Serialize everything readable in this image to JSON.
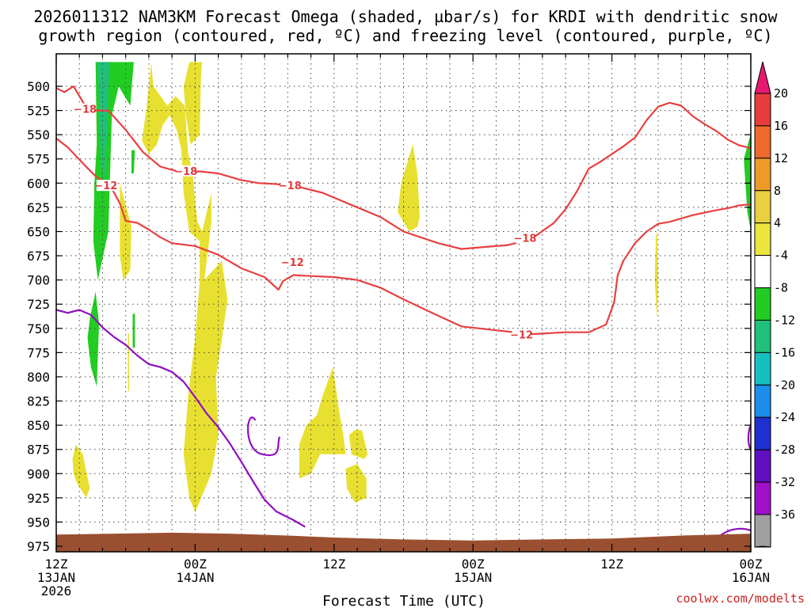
{
  "chart_data": {
    "type": "contour",
    "title_line1": "2026011312 NAM3KM Forecast Omega (shaded, µbar/s) for KRDI with dendritic snow",
    "title_line2": "growth region (contoured, red, ºC) and freezing level (contoured, purple, ºC)",
    "xlabel": "Forecast Time (UTC)",
    "credit": "coolwx.com/modelts",
    "x_ticks": [
      {
        "hour": 0,
        "lines": [
          "12Z",
          "13JAN",
          "2026"
        ]
      },
      {
        "hour": 12,
        "lines": [
          "00Z",
          "14JAN"
        ]
      },
      {
        "hour": 24,
        "lines": [
          "12Z"
        ]
      },
      {
        "hour": 36,
        "lines": [
          "00Z",
          "15JAN"
        ]
      },
      {
        "hour": 48,
        "lines": [
          "12Z"
        ]
      },
      {
        "hour": 60,
        "lines": [
          "00Z",
          "16JAN"
        ]
      }
    ],
    "xlim_hours": [
      0,
      60
    ],
    "y_ticks": [
      500,
      525,
      550,
      575,
      600,
      625,
      650,
      675,
      700,
      725,
      750,
      775,
      800,
      825,
      850,
      875,
      900,
      925,
      950,
      975
    ],
    "ylim_hPa": [
      475,
      985
    ],
    "grid": true,
    "colorbar": {
      "labels": [
        "20",
        "16",
        "12",
        "8",
        "4",
        "-4",
        "-8",
        "-12",
        "-16",
        "-20",
        "-24",
        "-28",
        "-32",
        "-36"
      ],
      "colors": [
        "#e8186f",
        "#e83c3c",
        "#ec6a2c",
        "#ee9a2a",
        "#e8d040",
        "#ebe53c",
        "#ffffff",
        "#22cc22",
        "#1fc07a",
        "#14c0c0",
        "#1a8ee8",
        "#2030d0",
        "#6010c0",
        "#a010c8",
        "#a0a0a0",
        "#000000"
      ]
    },
    "contours": [
      {
        "label": "-18",
        "color": "#e84040",
        "points": [
          [
            -0.3,
            500
          ],
          [
            0.7,
            506
          ],
          [
            1.5,
            500
          ],
          [
            2.5,
            520
          ],
          [
            3.5,
            525
          ],
          [
            4.5,
            525
          ],
          [
            6,
            545
          ],
          [
            7.5,
            568
          ],
          [
            9,
            583
          ],
          [
            10.5,
            588
          ],
          [
            12.5,
            588
          ],
          [
            14,
            590
          ],
          [
            16,
            597
          ],
          [
            17.5,
            600
          ],
          [
            19,
            601
          ],
          [
            21,
            604
          ],
          [
            23,
            610
          ],
          [
            25,
            620
          ],
          [
            28,
            635
          ],
          [
            30,
            650
          ],
          [
            33,
            662
          ],
          [
            35,
            668
          ],
          [
            37,
            666
          ],
          [
            39,
            664
          ],
          [
            41,
            658
          ],
          [
            43,
            641
          ],
          [
            44,
            627
          ],
          [
            45,
            608
          ],
          [
            46,
            585
          ],
          [
            47,
            578
          ],
          [
            48,
            570
          ],
          [
            49,
            562
          ],
          [
            50,
            553
          ],
          [
            51,
            535
          ],
          [
            52,
            521
          ],
          [
            53,
            517
          ],
          [
            54,
            520
          ],
          [
            55,
            531
          ],
          [
            56,
            539
          ],
          [
            57,
            546
          ],
          [
            58,
            555
          ],
          [
            59,
            561
          ],
          [
            60,
            564
          ]
        ]
      },
      {
        "label": "-12",
        "color": "#e84040",
        "points": [
          [
            -0.3,
            551
          ],
          [
            1,
            563
          ],
          [
            2.5,
            582
          ],
          [
            3.5,
            594
          ],
          [
            4.5,
            601
          ],
          [
            5,
            610
          ],
          [
            5.5,
            621
          ],
          [
            6,
            639
          ],
          [
            7,
            641
          ],
          [
            8,
            648
          ],
          [
            9,
            656
          ],
          [
            10,
            662
          ],
          [
            12,
            665
          ],
          [
            14,
            674
          ],
          [
            16,
            688
          ],
          [
            18,
            697
          ],
          [
            19.2,
            710
          ],
          [
            19.6,
            701
          ],
          [
            20.5,
            695
          ],
          [
            22,
            696
          ],
          [
            24,
            697
          ],
          [
            26,
            700
          ],
          [
            28,
            708
          ],
          [
            30,
            720
          ],
          [
            33,
            737
          ],
          [
            35,
            748
          ],
          [
            38,
            752
          ],
          [
            41,
            756
          ],
          [
            44,
            754
          ],
          [
            46,
            754
          ],
          [
            47.5,
            746
          ],
          [
            48.2,
            723
          ],
          [
            48.5,
            695
          ],
          [
            49,
            680
          ],
          [
            50,
            662
          ],
          [
            51,
            650
          ],
          [
            52,
            642
          ],
          [
            53,
            640
          ],
          [
            55,
            633
          ],
          [
            57,
            628
          ],
          [
            58,
            626
          ],
          [
            59,
            623
          ],
          [
            60,
            622
          ]
        ]
      },
      {
        "label": "",
        "color": "#9010c0",
        "points": [
          [
            -0.3,
            730
          ],
          [
            1,
            734
          ],
          [
            2,
            731
          ],
          [
            3,
            736
          ],
          [
            4,
            749
          ],
          [
            5,
            759
          ],
          [
            6,
            767
          ],
          [
            7,
            778
          ],
          [
            8,
            787
          ],
          [
            9,
            790
          ],
          [
            10,
            795
          ],
          [
            11,
            805
          ],
          [
            12,
            821
          ],
          [
            13,
            838
          ],
          [
            14,
            852
          ],
          [
            15,
            869
          ],
          [
            16,
            888
          ],
          [
            17,
            908
          ],
          [
            18,
            927
          ],
          [
            19,
            939
          ],
          [
            20.5,
            948
          ],
          [
            21.5,
            955
          ]
        ]
      }
    ],
    "omega_regions": [
      {
        "level": "-8",
        "color": "#22cc22",
        "points": [
          [
            3.4,
            475
          ],
          [
            6.7,
            475
          ],
          [
            6.4,
            520
          ],
          [
            5.4,
            500
          ],
          [
            4.8,
            530
          ],
          [
            4.5,
            650
          ],
          [
            3.6,
            700
          ],
          [
            3.2,
            660
          ],
          [
            3.3,
            600
          ],
          [
            3.5,
            560
          ]
        ]
      },
      {
        "level": "-8",
        "color": "#22cc22",
        "points": [
          [
            2.9,
            740
          ],
          [
            3.4,
            712
          ],
          [
            3.7,
            745
          ],
          [
            3.5,
            810
          ],
          [
            3.0,
            790
          ],
          [
            2.7,
            760
          ]
        ]
      },
      {
        "level": "-12",
        "color": "#1fc07a",
        "points": [
          [
            3.6,
            475
          ],
          [
            4.6,
            475
          ],
          [
            4.4,
            540
          ],
          [
            4.2,
            600
          ],
          [
            3.9,
            580
          ],
          [
            3.7,
            530
          ]
        ]
      },
      {
        "level": "-8",
        "color": "#22cc22",
        "points": [
          [
            6.5,
            566
          ],
          [
            6.8,
            566
          ],
          [
            6.7,
            590
          ],
          [
            6.5,
            590
          ]
        ]
      },
      {
        "level": "-8",
        "color": "#22cc22",
        "points": [
          [
            6.6,
            735
          ],
          [
            6.8,
            735
          ],
          [
            6.8,
            770
          ],
          [
            6.6,
            770
          ]
        ]
      },
      {
        "level": "-8",
        "color": "#22cc22",
        "points": [
          [
            59.4,
            575
          ],
          [
            60.2,
            540
          ],
          [
            60.6,
            560
          ],
          [
            60.5,
            680
          ],
          [
            59.7,
            630
          ]
        ]
      },
      {
        "level": "4",
        "color": "#e8e030",
        "points": [
          [
            5.5,
            600
          ],
          [
            6.5,
            645
          ],
          [
            6.4,
            690
          ],
          [
            5.8,
            700
          ],
          [
            5.5,
            675
          ]
        ]
      },
      {
        "level": "4",
        "color": "#e8e030",
        "points": [
          [
            7.4,
            556
          ],
          [
            7.8,
            523
          ],
          [
            8.2,
            476
          ],
          [
            8.4,
            500
          ],
          [
            9.6,
            520
          ],
          [
            10.3,
            510
          ],
          [
            11.1,
            520
          ],
          [
            11.4,
            570
          ],
          [
            11.8,
            590
          ],
          [
            12.0,
            620
          ],
          [
            12.2,
            640
          ],
          [
            12.6,
            650
          ],
          [
            13.4,
            610
          ],
          [
            13.4,
            640
          ],
          [
            12.8,
            700
          ],
          [
            14.3,
            680
          ],
          [
            14.8,
            720
          ],
          [
            14.2,
            770
          ],
          [
            13.8,
            800
          ],
          [
            14.0,
            860
          ],
          [
            13.4,
            900
          ],
          [
            12.0,
            940
          ],
          [
            11.5,
            925
          ],
          [
            11.0,
            880
          ],
          [
            11.4,
            820
          ],
          [
            12.0,
            760
          ],
          [
            12.4,
            700
          ],
          [
            12.4,
            660
          ],
          [
            11.5,
            650
          ],
          [
            11.0,
            610
          ],
          [
            10.8,
            565
          ],
          [
            10.4,
            545
          ],
          [
            9.8,
            530
          ],
          [
            9.2,
            540
          ],
          [
            8.7,
            560
          ],
          [
            8.0,
            570
          ]
        ]
      },
      {
        "level": "4",
        "color": "#e8e030",
        "points": [
          [
            11.0,
            500
          ],
          [
            11.5,
            475
          ],
          [
            12.6,
            475
          ],
          [
            12.5,
            490
          ],
          [
            12.4,
            550
          ],
          [
            11.6,
            560
          ],
          [
            11.2,
            530
          ]
        ]
      },
      {
        "level": "4",
        "color": "#e8e030",
        "points": [
          [
            6.2,
            755
          ],
          [
            6.3,
            755
          ],
          [
            6.3,
            815
          ],
          [
            6.2,
            815
          ]
        ]
      },
      {
        "level": "4",
        "color": "#e8e030",
        "points": [
          [
            1.4,
            885
          ],
          [
            1.7,
            870
          ],
          [
            2.3,
            880
          ],
          [
            2.9,
            915
          ],
          [
            2.6,
            925
          ],
          [
            1.8,
            910
          ],
          [
            1.5,
            900
          ]
        ]
      },
      {
        "level": "4",
        "color": "#e8e030",
        "points": [
          [
            21.0,
            870
          ],
          [
            21.6,
            850
          ],
          [
            22.5,
            840
          ],
          [
            23.0,
            820
          ],
          [
            23.9,
            790
          ],
          [
            24.5,
            840
          ],
          [
            24.8,
            860
          ],
          [
            25.0,
            880
          ],
          [
            24.2,
            880
          ],
          [
            22.8,
            880
          ],
          [
            22.0,
            900
          ],
          [
            21.0,
            905
          ]
        ]
      },
      {
        "level": "4",
        "color": "#e8e030",
        "points": [
          [
            25.3,
            860
          ],
          [
            25.8,
            855
          ],
          [
            26.4,
            855
          ],
          [
            26.9,
            880
          ],
          [
            26.6,
            885
          ],
          [
            25.5,
            880
          ]
        ]
      },
      {
        "level": "4",
        "color": "#e8e030",
        "points": [
          [
            25.0,
            895
          ],
          [
            26.0,
            890
          ],
          [
            26.8,
            905
          ],
          [
            26.8,
            925
          ],
          [
            25.8,
            930
          ],
          [
            25.1,
            915
          ]
        ]
      },
      {
        "level": "4",
        "color": "#e8e030",
        "points": [
          [
            29.8,
            600
          ],
          [
            30.8,
            560
          ],
          [
            31.2,
            590
          ],
          [
            31.4,
            635
          ],
          [
            31.2,
            645
          ],
          [
            30.5,
            650
          ],
          [
            29.5,
            630
          ]
        ]
      },
      {
        "level": "4",
        "color": "#e8e030",
        "points": [
          [
            51.8,
            655
          ],
          [
            51.9,
            650
          ],
          [
            52.0,
            700
          ],
          [
            51.9,
            740
          ],
          [
            51.7,
            700
          ]
        ]
      }
    ],
    "terrain_color": "#9a5030"
  }
}
